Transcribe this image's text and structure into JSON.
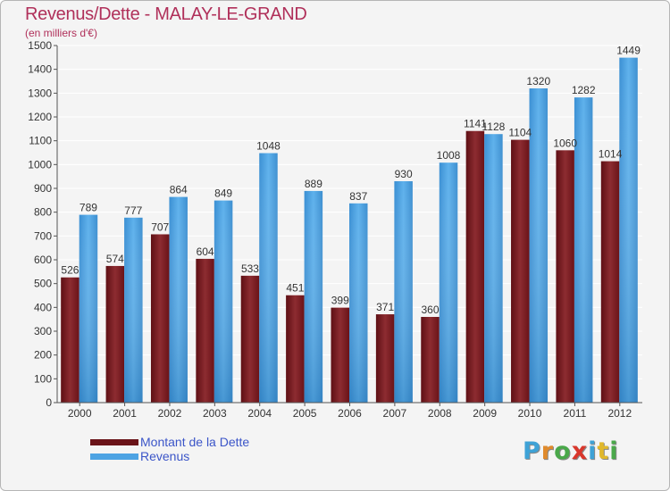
{
  "title": "Revenus/Dette - MALAY-LE-GRAND",
  "subtitle": "(en milliers d'€)",
  "colors": {
    "debt": "#7b1a1f",
    "debt_light": "#8d3a3e",
    "revenue": "#4da3e3",
    "revenue_dark": "#2e7fbf",
    "title": "#b0305a",
    "legend_text": "#3b55c8"
  },
  "chart_data": {
    "type": "bar",
    "categories": [
      "2000",
      "2001",
      "2002",
      "2003",
      "2004",
      "2005",
      "2006",
      "2007",
      "2008",
      "2009",
      "2010",
      "2011",
      "2012"
    ],
    "series": [
      {
        "name": "Montant de la Dette",
        "values": [
          526,
          574,
          707,
          604,
          533,
          451,
          399,
          371,
          360,
          1141,
          1104,
          1060,
          1014
        ]
      },
      {
        "name": "Revenus",
        "values": [
          789,
          777,
          864,
          849,
          1048,
          889,
          837,
          930,
          1008,
          1128,
          1320,
          1282,
          1449
        ]
      }
    ],
    "ylim": [
      0,
      1500
    ],
    "yticks": [
      0,
      100,
      200,
      300,
      400,
      500,
      600,
      700,
      800,
      900,
      1000,
      1100,
      1200,
      1300,
      1400,
      1500
    ],
    "grid": true,
    "legend": "bottom-left"
  },
  "legend": [
    {
      "label": "Montant de la Dette"
    },
    {
      "label": "Revenus"
    }
  ],
  "logo": {
    "letters": [
      {
        "char": "P",
        "color": "#3ea2d6"
      },
      {
        "char": "r",
        "color": "#e08a2c"
      },
      {
        "char": "o",
        "color": "#4aa84a"
      },
      {
        "char": "x",
        "color": "#d9372c"
      },
      {
        "char": "i",
        "color": "#3ea2d6"
      },
      {
        "char": "t",
        "color": "#e0b82c"
      },
      {
        "char": "i",
        "color": "#4aa84a"
      }
    ]
  }
}
